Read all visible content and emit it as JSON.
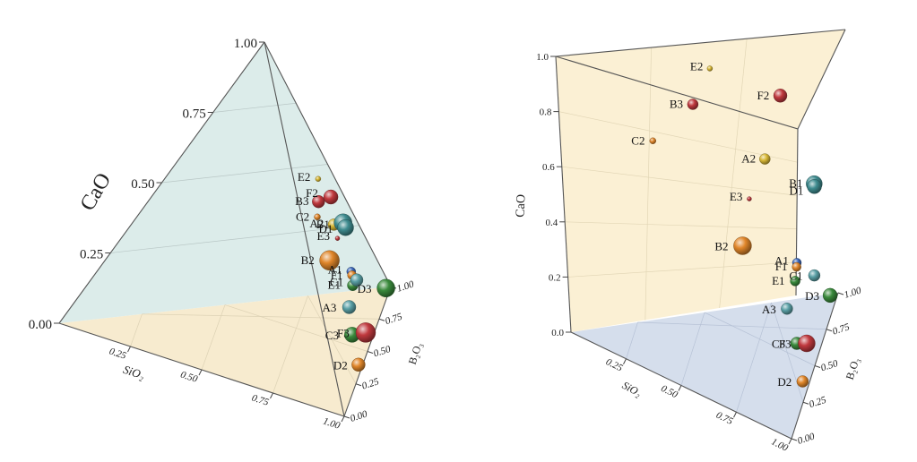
{
  "chart_data": [
    {
      "type": "scatter",
      "view": "ternary-3d-left",
      "xlabel": "SiO₂",
      "ylabel": "CaO",
      "zlabel": "B₂O₃",
      "ca_ticks": [
        "0.00",
        "0.25",
        "0.50",
        "0.75",
        "1.00"
      ],
      "si_ticks": [
        "0.25",
        "0.50",
        "0.75",
        "1.00"
      ],
      "b_ticks": [
        "0.00",
        "0.25",
        "0.50",
        "0.75",
        "1.00"
      ],
      "colors": {
        "back_face": "#dcecea",
        "floor": "#f7ebcf",
        "edge": "#555555"
      },
      "points": [
        {
          "label": "E2",
          "si": 0.15,
          "ca": 0.52,
          "b": 0.33,
          "size": 3,
          "color": "#d8b836"
        },
        {
          "label": "B3",
          "si": 0.25,
          "ca": 0.48,
          "b": 0.27,
          "size": 7,
          "color": "#c0393e"
        },
        {
          "label": "C2",
          "si": 0.33,
          "ca": 0.46,
          "b": 0.21,
          "size": 3.5,
          "color": "#e0862a"
        },
        {
          "label": "F2",
          "si": 0.12,
          "ca": 0.43,
          "b": 0.45,
          "size": 8,
          "color": "#c0393e"
        },
        {
          "label": "A2",
          "si": 0.22,
          "ca": 0.37,
          "b": 0.41,
          "size": 6.5,
          "color": "#d8b836"
        },
        {
          "label": "E3",
          "si": 0.25,
          "ca": 0.33,
          "b": 0.42,
          "size": 2.5,
          "color": "#c0393e"
        },
        {
          "label": "B1",
          "si": 0.13,
          "ca": 0.33,
          "b": 0.54,
          "size": 10,
          "color": "#3f8c90"
        },
        {
          "label": "D1",
          "si": 0.13,
          "ca": 0.31,
          "b": 0.56,
          "size": 9,
          "color": "#3f8c90"
        },
        {
          "label": "B2",
          "si": 0.42,
          "ca": 0.33,
          "b": 0.25,
          "size": 11,
          "color": "#e0862a"
        },
        {
          "label": "A1",
          "si": 0.28,
          "ca": 0.21,
          "b": 0.51,
          "size": 5,
          "color": "#3a66b8"
        },
        {
          "label": "F1",
          "si": 0.29,
          "ca": 0.2,
          "b": 0.51,
          "size": 5,
          "color": "#e0862a"
        },
        {
          "label": "E1",
          "si": 0.33,
          "ca": 0.18,
          "b": 0.49,
          "size": 6,
          "color": "#3a8a3c"
        },
        {
          "label": "C1",
          "si": 0.27,
          "ca": 0.17,
          "b": 0.56,
          "size": 7,
          "color": "#5aa0a6"
        },
        {
          "label": "A3",
          "si": 0.46,
          "ca": 0.16,
          "b": 0.38,
          "size": 7.5,
          "color": "#5aa0a6"
        },
        {
          "label": "C3",
          "si": 0.56,
          "ca": 0.1,
          "b": 0.34,
          "size": 8.5,
          "color": "#3a8a3c"
        },
        {
          "label": "D3",
          "si": 0.05,
          "ca": 0.02,
          "b": 0.93,
          "size": 10,
          "color": "#3a8a3c"
        },
        {
          "label": "F3",
          "si": 0.43,
          "ca": 0.04,
          "b": 0.53,
          "size": 11,
          "color": "#c0393e"
        },
        {
          "label": "D2",
          "si": 0.64,
          "ca": 0.02,
          "b": 0.34,
          "size": 7.5,
          "color": "#e0862a"
        }
      ]
    },
    {
      "type": "scatter",
      "view": "ternary-3d-right",
      "xlabel": "SiO₂",
      "ylabel": "CaO",
      "zlabel": "B₂O₃",
      "ca_ticks": [
        "0.0",
        "0.2",
        "0.4",
        "0.6",
        "0.8",
        "1.0"
      ],
      "si_ticks": [
        "0.25",
        "0.50",
        "0.75",
        "1.00"
      ],
      "b_ticks": [
        "0.00",
        "0.25",
        "0.50",
        "0.75",
        "1.00"
      ],
      "colors": {
        "back_face": "#fbf0d4",
        "floor": "#d5deec",
        "edge": "#555555"
      },
      "points": [
        {
          "label": "E2",
          "si": 0.15,
          "ca": 0.95,
          "b": 0.45,
          "size": 3,
          "color": "#d8b836"
        },
        {
          "label": "B3",
          "si": 0.25,
          "ca": 0.88,
          "b": 0.3,
          "size": 6,
          "color": "#c0393e"
        },
        {
          "label": "C2",
          "si": 0.33,
          "ca": 0.81,
          "b": 0.08,
          "size": 3.5,
          "color": "#e0862a"
        },
        {
          "label": "F2",
          "si": 0.12,
          "ca": 0.8,
          "b": 0.73,
          "size": 7.5,
          "color": "#c0393e"
        },
        {
          "label": "A2",
          "si": 0.22,
          "ca": 0.63,
          "b": 0.58,
          "size": 6,
          "color": "#d8b836"
        },
        {
          "label": "E3",
          "si": 0.25,
          "ca": 0.51,
          "b": 0.49,
          "size": 2.5,
          "color": "#c0393e"
        },
        {
          "label": "B1",
          "si": 0.13,
          "ca": 0.47,
          "b": 0.83,
          "size": 9,
          "color": "#3f8c90"
        },
        {
          "label": "D1",
          "si": 0.13,
          "ca": 0.46,
          "b": 0.83,
          "size": 8,
          "color": "#3f8c90"
        },
        {
          "label": "B2",
          "si": 0.42,
          "ca": 0.43,
          "b": 0.32,
          "size": 10,
          "color": "#e0862a"
        },
        {
          "label": "A1",
          "si": 0.28,
          "ca": 0.27,
          "b": 0.63,
          "size": 5,
          "color": "#3a66b8"
        },
        {
          "label": "F1",
          "si": 0.29,
          "ca": 0.26,
          "b": 0.62,
          "size": 5,
          "color": "#e0862a"
        },
        {
          "label": "E1",
          "si": 0.33,
          "ca": 0.23,
          "b": 0.58,
          "size": 5.5,
          "color": "#3a8a3c"
        },
        {
          "label": "C1",
          "si": 0.27,
          "ca": 0.21,
          "b": 0.7,
          "size": 6.5,
          "color": "#5aa0a6"
        },
        {
          "label": "A3",
          "si": 0.46,
          "ca": 0.2,
          "b": 0.44,
          "size": 6.5,
          "color": "#5aa0a6"
        },
        {
          "label": "C3",
          "si": 0.56,
          "ca": 0.12,
          "b": 0.39,
          "size": 7,
          "color": "#3a8a3c"
        },
        {
          "label": "D3",
          "si": 0.05,
          "ca": 0.02,
          "b": 0.93,
          "size": 8,
          "color": "#3a8a3c"
        },
        {
          "label": "F3",
          "si": 0.43,
          "ca": 0.05,
          "b": 0.53,
          "size": 9.5,
          "color": "#c0393e"
        },
        {
          "label": "D2",
          "si": 0.64,
          "ca": 0.02,
          "b": 0.34,
          "size": 6.5,
          "color": "#e0862a"
        }
      ]
    }
  ]
}
